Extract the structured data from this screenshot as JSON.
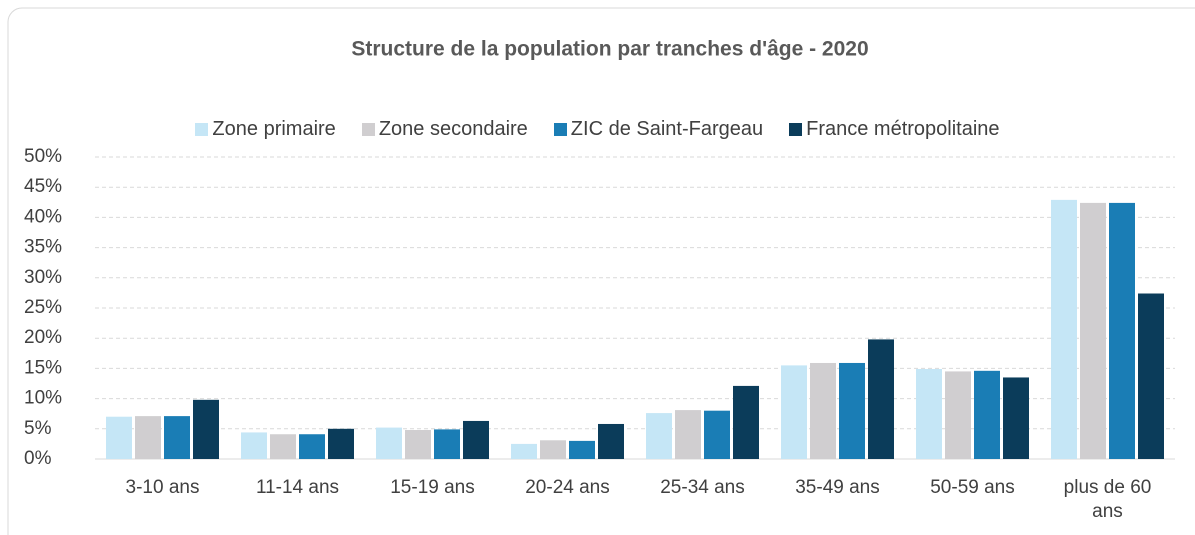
{
  "chart_data": {
    "type": "bar",
    "title": "Structure de la population par tranches d'âge - 2020",
    "categories": [
      "3-10 ans",
      "11-14 ans",
      "15-19 ans",
      "20-24 ans",
      "25-34 ans",
      "35-49 ans",
      "50-59 ans",
      "plus de 60 ans"
    ],
    "series": [
      {
        "name": "Zone primaire",
        "color": "#c5e6f6",
        "values": [
          7.0,
          4.4,
          5.2,
          2.5,
          7.6,
          15.5,
          14.9,
          42.9
        ]
      },
      {
        "name": "Zone secondaire",
        "color": "#d0ced0",
        "values": [
          7.1,
          4.1,
          4.8,
          3.1,
          8.1,
          15.9,
          14.5,
          42.4
        ]
      },
      {
        "name": "ZIC de Saint-Fargeau",
        "color": "#1a7db5",
        "values": [
          7.1,
          4.1,
          4.9,
          3.0,
          8.0,
          15.9,
          14.6,
          42.4
        ]
      },
      {
        "name": "France métropolitaine",
        "color": "#0b3c5a",
        "values": [
          9.8,
          5.0,
          6.3,
          5.8,
          12.1,
          19.8,
          13.5,
          27.4
        ]
      }
    ],
    "ylim": [
      0,
      50
    ],
    "yticks": [
      {
        "value": 0,
        "label": "0%"
      },
      {
        "value": 5,
        "label": "5%"
      },
      {
        "value": 10,
        "label": "10%"
      },
      {
        "value": 15,
        "label": "15%"
      },
      {
        "value": 20,
        "label": "20%"
      },
      {
        "value": 25,
        "label": "25%"
      },
      {
        "value": 30,
        "label": "30%"
      },
      {
        "value": 35,
        "label": "35%"
      },
      {
        "value": 40,
        "label": "40%"
      },
      {
        "value": 45,
        "label": "45%"
      },
      {
        "value": 50,
        "label": "50%"
      }
    ],
    "grid": true,
    "legend": "top"
  }
}
